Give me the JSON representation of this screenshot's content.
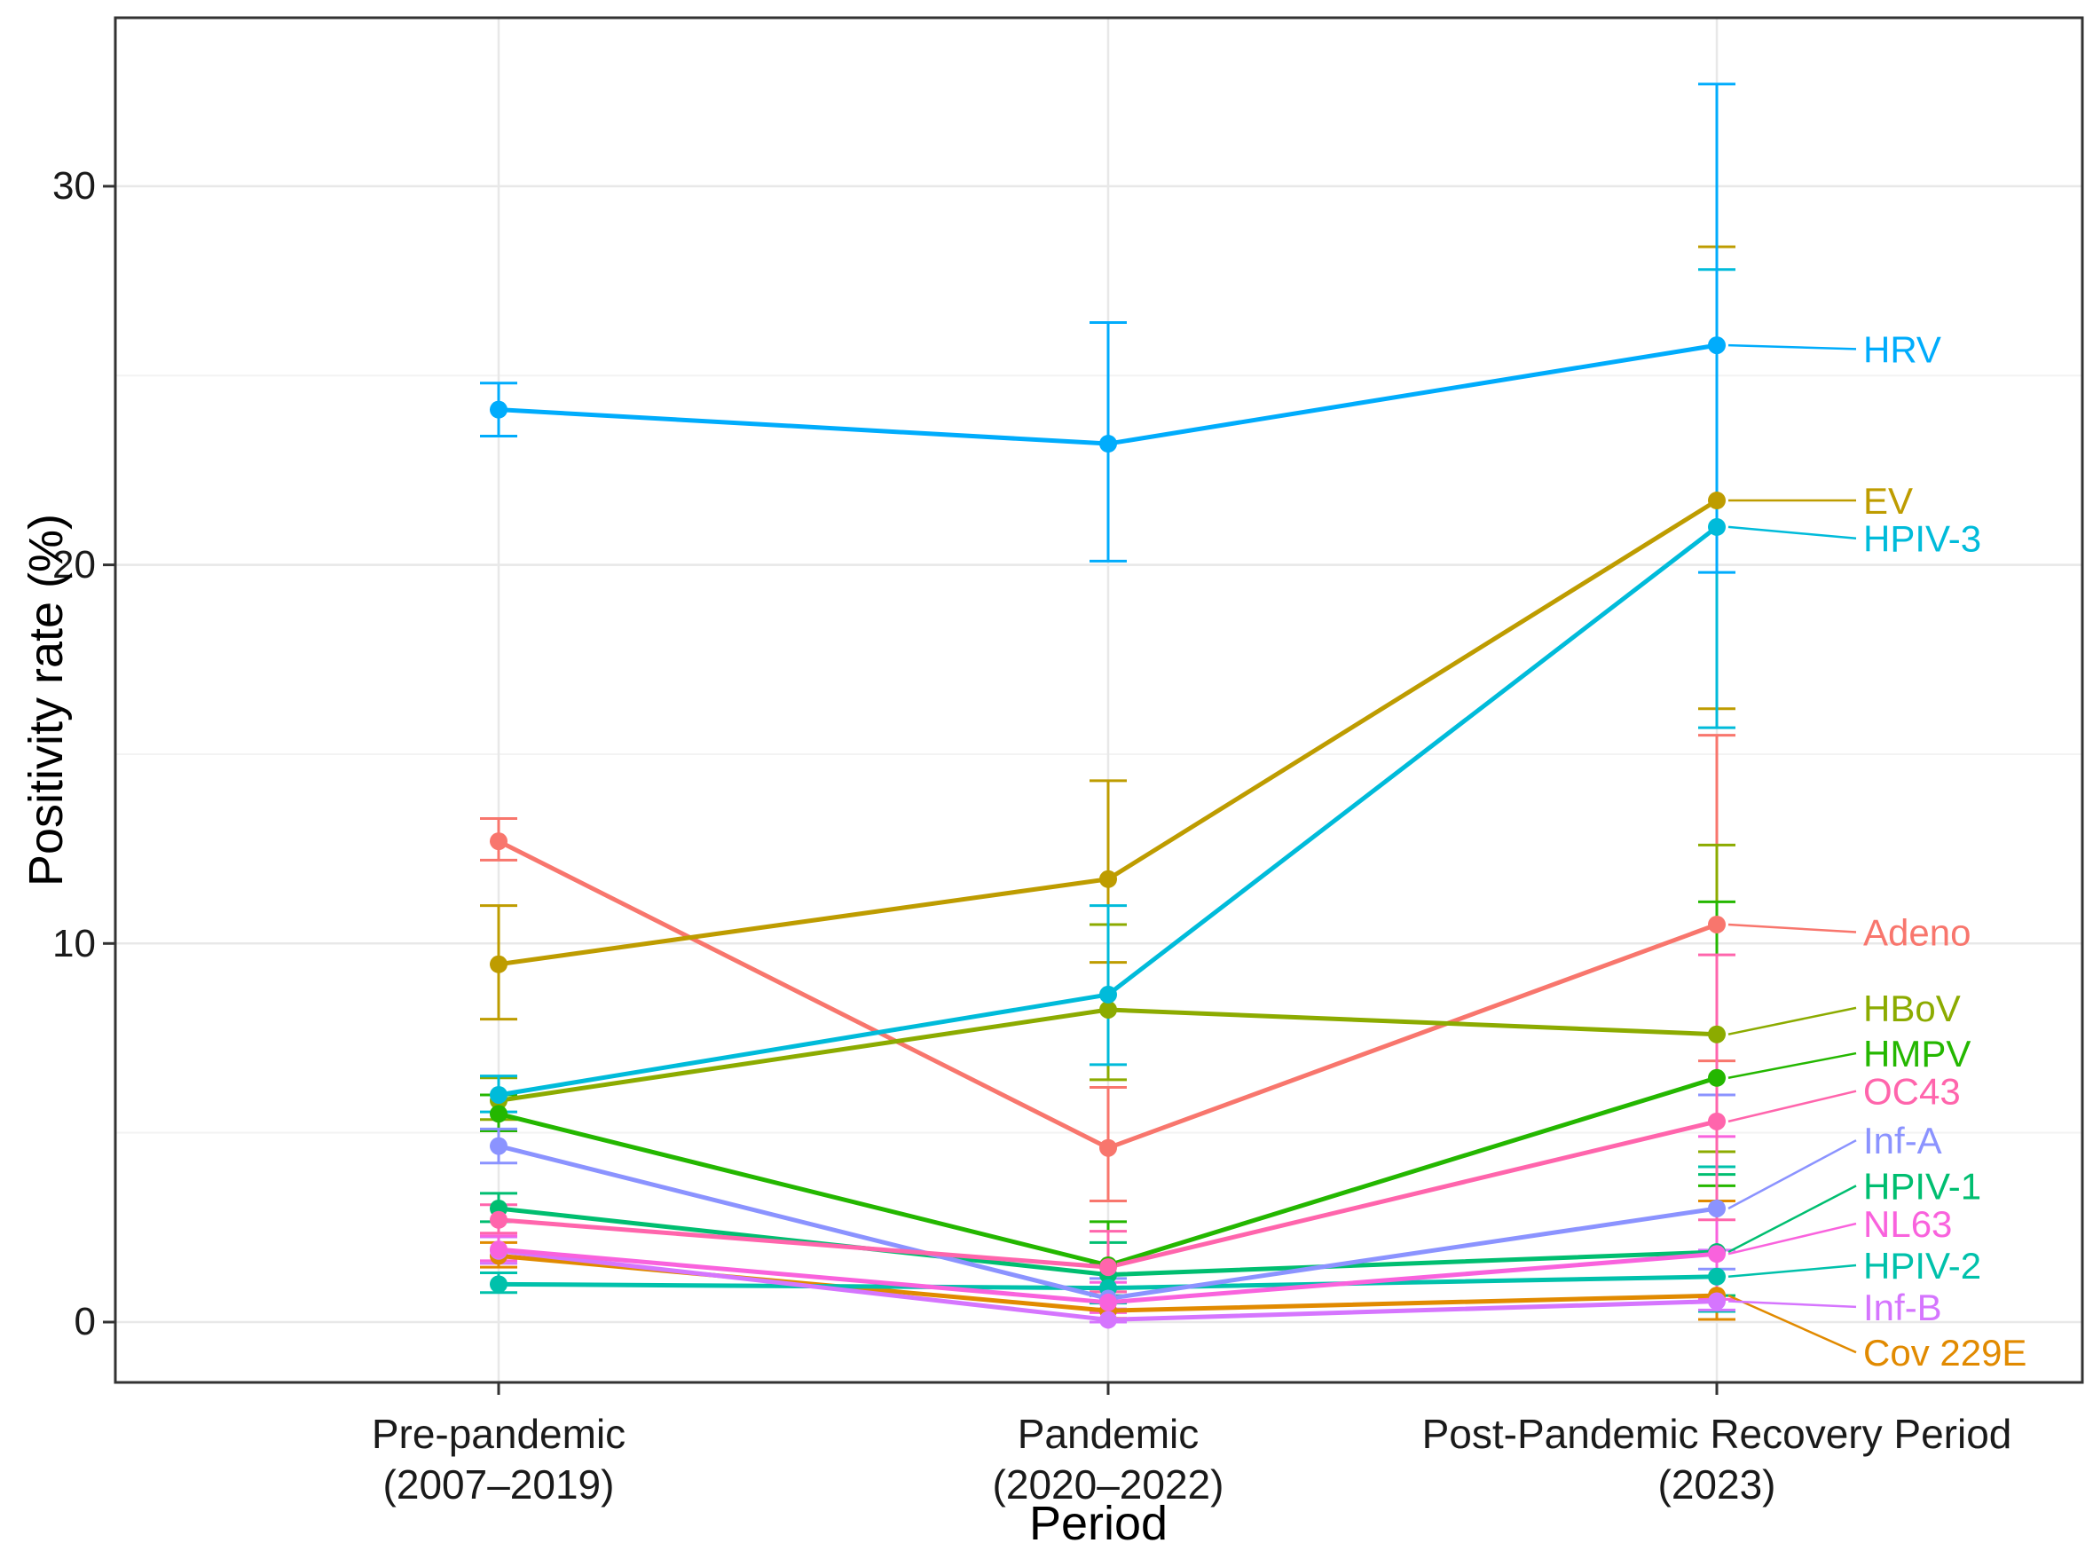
{
  "chart_data": {
    "type": "line",
    "title": "",
    "xlabel": "Period",
    "ylabel": "Positivity rate (%)",
    "ylim": [
      -1.6,
      34.4
    ],
    "grid": true,
    "legend_position": "right-annotated-labels",
    "y_axis": {
      "tick_labels": [
        "0",
        "10",
        "20",
        "30"
      ],
      "tick_values": [
        0,
        10,
        20,
        30
      ],
      "minor_tick_values": [
        5,
        15,
        25
      ]
    },
    "x_axis": {
      "categories": [
        {
          "line1": "Pre-pandemic",
          "line2": "(2007–2019)"
        },
        {
          "line1": "Pandemic",
          "line2": "(2020–2022)"
        },
        {
          "line1": "Post-Pandemic Recovery Period",
          "line2": "(2023)"
        }
      ]
    },
    "series": [
      {
        "name": "Adeno",
        "color": "#F8766D",
        "values": [
          12.7,
          4.6,
          10.5
        ],
        "ci_low": [
          12.2,
          3.2,
          6.9
        ],
        "ci_high": [
          13.3,
          6.2,
          15.5
        ],
        "label_value": 10.3
      },
      {
        "name": "Cov 229E",
        "color": "#E18A00",
        "values": [
          1.75,
          0.3,
          0.7
        ],
        "ci_low": [
          1.45,
          0.1,
          0.07
        ],
        "ci_high": [
          2.1,
          0.8,
          3.2
        ],
        "label_value": -0.8
      },
      {
        "name": "EV",
        "color": "#BE9C00",
        "values": [
          9.45,
          11.7,
          21.7
        ],
        "ci_low": [
          8.0,
          9.5,
          16.2
        ],
        "ci_high": [
          11.0,
          14.3,
          28.4
        ],
        "label_value": 21.7
      },
      {
        "name": "HBoV",
        "color": "#8CAB00",
        "values": [
          5.85,
          8.25,
          7.6
        ],
        "ci_low": [
          5.35,
          6.4,
          4.5
        ],
        "ci_high": [
          6.45,
          10.5,
          12.6
        ],
        "label_value": 8.3
      },
      {
        "name": "HMPV",
        "color": "#24B700",
        "values": [
          5.5,
          1.5,
          6.45
        ],
        "ci_low": [
          5.05,
          0.9,
          3.6
        ],
        "ci_high": [
          6.0,
          2.65,
          11.1
        ],
        "label_value": 7.1
      },
      {
        "name": "HPIV-1",
        "color": "#00BE70",
        "values": [
          3.0,
          1.25,
          1.85
        ],
        "ci_low": [
          2.65,
          0.7,
          0.7
        ],
        "ci_high": [
          3.4,
          2.1,
          3.9
        ],
        "label_value": 3.6
      },
      {
        "name": "HPIV-2",
        "color": "#00C1AB",
        "values": [
          1.0,
          0.9,
          1.2
        ],
        "ci_low": [
          0.78,
          0.5,
          0.28
        ],
        "ci_high": [
          1.3,
          1.55,
          4.1
        ],
        "label_value": 1.5
      },
      {
        "name": "HPIV-3",
        "color": "#00BBDA",
        "values": [
          6.0,
          8.65,
          21.0
        ],
        "ci_low": [
          5.55,
          6.8,
          15.7
        ],
        "ci_high": [
          6.5,
          11.0,
          27.8
        ],
        "label_value": 20.7
      },
      {
        "name": "HRV",
        "color": "#00ACFC",
        "values": [
          24.1,
          23.2,
          25.8
        ],
        "ci_low": [
          23.4,
          20.1,
          19.8
        ],
        "ci_high": [
          24.8,
          26.4,
          32.7
        ],
        "label_value": 25.7
      },
      {
        "name": "Inf-A",
        "color": "#8B93FF",
        "values": [
          4.65,
          0.62,
          3.0
        ],
        "ci_low": [
          4.2,
          0.3,
          1.4
        ],
        "ci_high": [
          5.1,
          1.15,
          6.0
        ],
        "label_value": 4.8
      },
      {
        "name": "Inf-B",
        "color": "#D575FE",
        "values": [
          1.88,
          0.06,
          0.55
        ],
        "ci_low": [
          1.55,
          0.0,
          0.32
        ],
        "ci_high": [
          2.25,
          0.35,
          1.9
        ],
        "label_value": 0.4
      },
      {
        "name": "NL63",
        "color": "#F962DD",
        "values": [
          1.92,
          0.52,
          1.8
        ],
        "ci_low": [
          1.62,
          0.25,
          0.6
        ],
        "ci_high": [
          2.28,
          1.05,
          4.9
        ],
        "label_value": 2.6
      },
      {
        "name": "OC43",
        "color": "#FF65AC",
        "values": [
          2.7,
          1.45,
          5.3
        ],
        "ci_low": [
          2.35,
          0.8,
          2.7
        ],
        "ci_high": [
          3.1,
          2.4,
          9.7
        ],
        "label_value": 6.1
      }
    ]
  }
}
